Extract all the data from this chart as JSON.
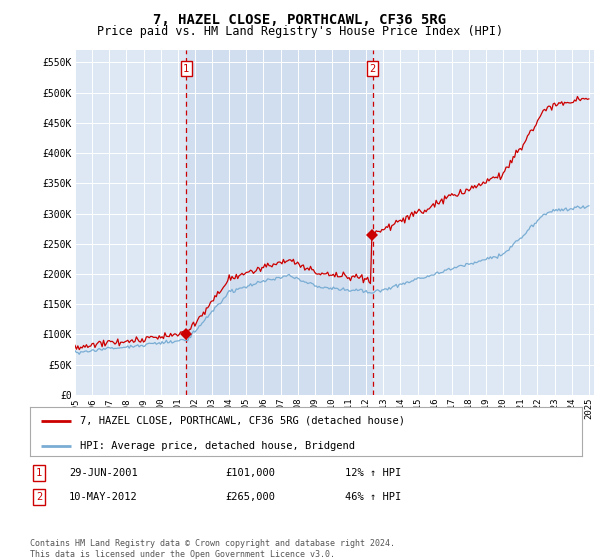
{
  "title": "7, HAZEL CLOSE, PORTHCAWL, CF36 5RG",
  "subtitle": "Price paid vs. HM Land Registry's House Price Index (HPI)",
  "ylim": [
    0,
    570000
  ],
  "yticks": [
    0,
    50000,
    100000,
    150000,
    200000,
    250000,
    300000,
    350000,
    400000,
    450000,
    500000,
    550000
  ],
  "ytick_labels": [
    "£0",
    "£50K",
    "£100K",
    "£150K",
    "£200K",
    "£250K",
    "£300K",
    "£350K",
    "£400K",
    "£450K",
    "£500K",
    "£550K"
  ],
  "sale1_date": 2001.5,
  "sale1_price": 101000,
  "sale2_date": 2012.37,
  "sale2_price": 265000,
  "line_color_red": "#cc0000",
  "line_color_blue": "#7aadd4",
  "bg_color": "#dde8f4",
  "grid_color": "#ffffff",
  "legend_label_red": "7, HAZEL CLOSE, PORTHCAWL, CF36 5RG (detached house)",
  "legend_label_blue": "HPI: Average price, detached house, Bridgend",
  "table_row1": [
    "1",
    "29-JUN-2001",
    "£101,000",
    "12% ↑ HPI"
  ],
  "table_row2": [
    "2",
    "10-MAY-2012",
    "£265,000",
    "46% ↑ HPI"
  ],
  "footer": "Contains HM Land Registry data © Crown copyright and database right 2024.\nThis data is licensed under the Open Government Licence v3.0.",
  "title_fontsize": 10,
  "subtitle_fontsize": 8.5
}
